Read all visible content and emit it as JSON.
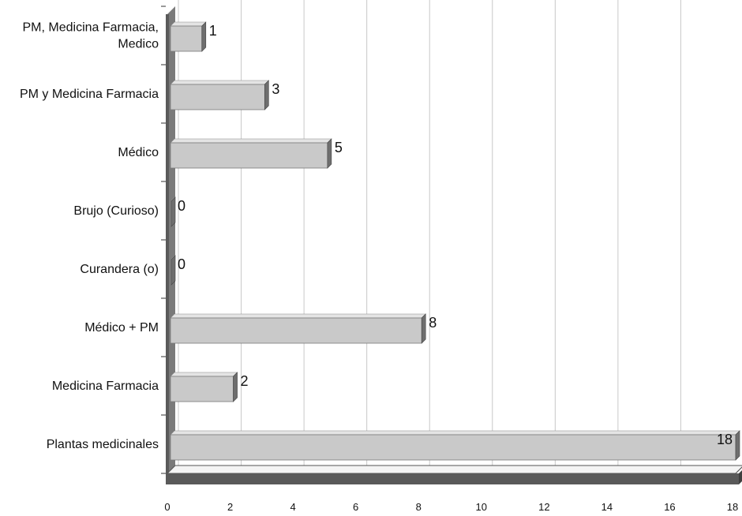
{
  "chart_data": {
    "type": "bar",
    "orientation": "horizontal",
    "style": "3d",
    "categories": [
      "PM, Medicina Farmacia, Medico",
      "PM y Medicina Farmacia",
      "Médico",
      "Brujo (Curioso)",
      "Curandera (o)",
      "Médico + PM",
      "Medicina Farmacia",
      "Plantas medicinales"
    ],
    "category_label_lines": [
      [
        "PM, Medicina Farmacia,",
        "Medico"
      ],
      [
        "PM y Medicina Farmacia"
      ],
      [
        "Médico"
      ],
      [
        "Brujo (Curioso)"
      ],
      [
        "Curandera (o)"
      ],
      [
        "Médico + PM"
      ],
      [
        "Medicina Farmacia"
      ],
      [
        "Plantas medicinales"
      ]
    ],
    "values": [
      1,
      3,
      5,
      0,
      0,
      8,
      2,
      18
    ],
    "xlim": [
      0,
      18
    ],
    "xticks": [
      "0",
      "2",
      "4",
      "6",
      "8",
      "10",
      "12",
      "14",
      "16",
      "18"
    ],
    "grid": true,
    "data_labels": true,
    "title": "",
    "xlabel": "",
    "ylabel": "",
    "colors": {
      "bar_face": "#c9c9c9",
      "bar_top": "#e4e4e4",
      "bar_side": "#6e6e6e",
      "wall": "#7a7a7a",
      "floor": "#5a5a5a",
      "grid": "#c8c8c8"
    }
  }
}
